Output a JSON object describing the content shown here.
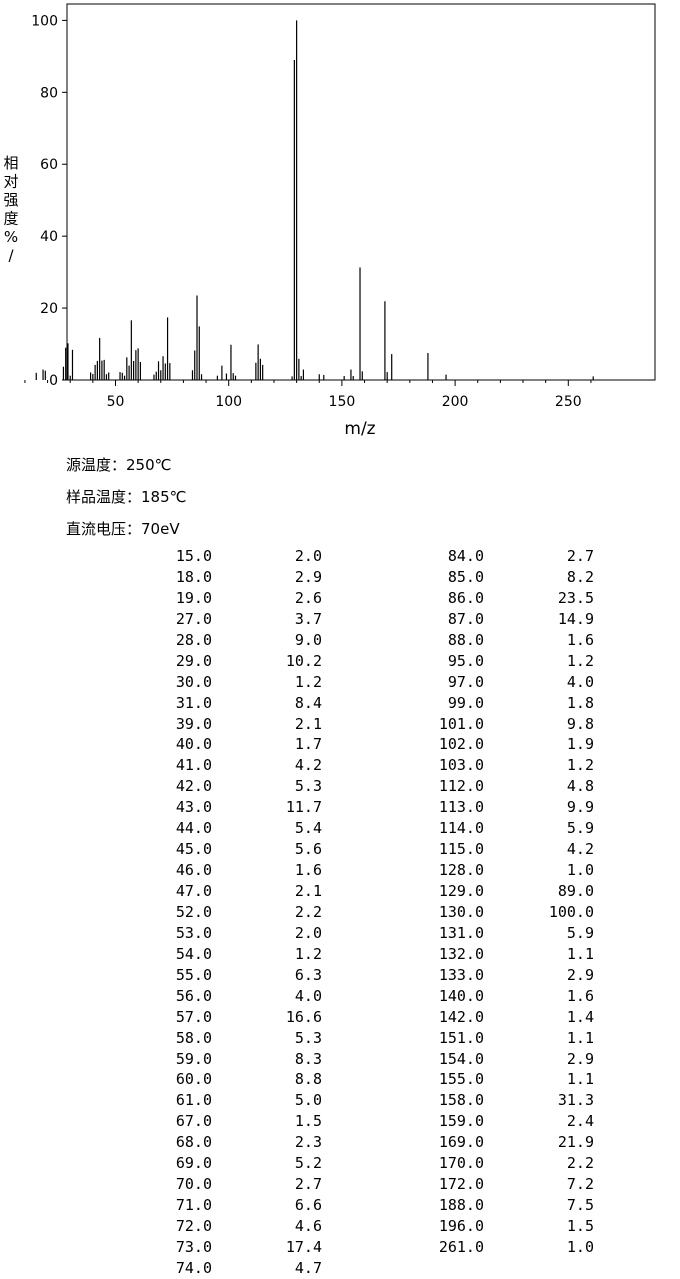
{
  "chart_data": {
    "type": "bar",
    "xlabel": "m/z",
    "ylabel": "相对强度 %/",
    "xlim": [
      9,
      265
    ],
    "ylim": [
      0,
      102
    ],
    "xticks": [
      50,
      100,
      150,
      200,
      250
    ],
    "yticks": [
      0,
      20,
      40,
      60,
      80,
      100
    ],
    "grid": false,
    "peaks": [
      [
        15.0,
        2.0
      ],
      [
        18.0,
        2.9
      ],
      [
        19.0,
        2.6
      ],
      [
        27.0,
        3.7
      ],
      [
        28.0,
        9.0
      ],
      [
        29.0,
        10.2
      ],
      [
        30.0,
        1.2
      ],
      [
        31.0,
        8.4
      ],
      [
        39.0,
        2.1
      ],
      [
        40.0,
        1.7
      ],
      [
        41.0,
        4.2
      ],
      [
        42.0,
        5.3
      ],
      [
        43.0,
        11.7
      ],
      [
        44.0,
        5.4
      ],
      [
        45.0,
        5.6
      ],
      [
        46.0,
        1.6
      ],
      [
        47.0,
        2.1
      ],
      [
        52.0,
        2.2
      ],
      [
        53.0,
        2.0
      ],
      [
        54.0,
        1.2
      ],
      [
        55.0,
        6.3
      ],
      [
        56.0,
        4.0
      ],
      [
        57.0,
        16.6
      ],
      [
        58.0,
        5.3
      ],
      [
        59.0,
        8.3
      ],
      [
        60.0,
        8.8
      ],
      [
        61.0,
        5.0
      ],
      [
        67.0,
        1.5
      ],
      [
        68.0,
        2.3
      ],
      [
        69.0,
        5.2
      ],
      [
        70.0,
        2.7
      ],
      [
        71.0,
        6.6
      ],
      [
        72.0,
        4.6
      ],
      [
        73.0,
        17.4
      ],
      [
        74.0,
        4.7
      ],
      [
        84.0,
        2.7
      ],
      [
        85.0,
        8.2
      ],
      [
        86.0,
        23.5
      ],
      [
        87.0,
        14.9
      ],
      [
        88.0,
        1.6
      ],
      [
        95.0,
        1.2
      ],
      [
        97.0,
        4.0
      ],
      [
        99.0,
        1.8
      ],
      [
        101.0,
        9.8
      ],
      [
        102.0,
        1.9
      ],
      [
        103.0,
        1.2
      ],
      [
        112.0,
        4.8
      ],
      [
        113.0,
        9.9
      ],
      [
        114.0,
        5.9
      ],
      [
        115.0,
        4.2
      ],
      [
        128.0,
        1.0
      ],
      [
        129.0,
        89.0
      ],
      [
        130.0,
        100.0
      ],
      [
        131.0,
        5.9
      ],
      [
        132.0,
        1.1
      ],
      [
        133.0,
        2.9
      ],
      [
        140.0,
        1.6
      ],
      [
        142.0,
        1.4
      ],
      [
        151.0,
        1.1
      ],
      [
        154.0,
        2.9
      ],
      [
        155.0,
        1.1
      ],
      [
        158.0,
        31.3
      ],
      [
        159.0,
        2.4
      ],
      [
        169.0,
        21.9
      ],
      [
        170.0,
        2.2
      ],
      [
        172.0,
        7.2
      ],
      [
        188.0,
        7.5
      ],
      [
        196.0,
        1.5
      ],
      [
        261.0,
        1.0
      ]
    ]
  },
  "conditions": {
    "source_temp": "源温度：250℃",
    "sample_temp": "样品温度：185℃",
    "voltage": "直流电压：70eV"
  },
  "table": {
    "left": [
      [
        "15.0",
        "2.0"
      ],
      [
        "18.0",
        "2.9"
      ],
      [
        "19.0",
        "2.6"
      ],
      [
        "27.0",
        "3.7"
      ],
      [
        "28.0",
        "9.0"
      ],
      [
        "29.0",
        "10.2"
      ],
      [
        "30.0",
        "1.2"
      ],
      [
        "31.0",
        "8.4"
      ],
      [
        "39.0",
        "2.1"
      ],
      [
        "40.0",
        "1.7"
      ],
      [
        "41.0",
        "4.2"
      ],
      [
        "42.0",
        "5.3"
      ],
      [
        "43.0",
        "11.7"
      ],
      [
        "44.0",
        "5.4"
      ],
      [
        "45.0",
        "5.6"
      ],
      [
        "46.0",
        "1.6"
      ],
      [
        "47.0",
        "2.1"
      ],
      [
        "52.0",
        "2.2"
      ],
      [
        "53.0",
        "2.0"
      ],
      [
        "54.0",
        "1.2"
      ],
      [
        "55.0",
        "6.3"
      ],
      [
        "56.0",
        "4.0"
      ],
      [
        "57.0",
        "16.6"
      ],
      [
        "58.0",
        "5.3"
      ],
      [
        "59.0",
        "8.3"
      ],
      [
        "60.0",
        "8.8"
      ],
      [
        "61.0",
        "5.0"
      ],
      [
        "67.0",
        "1.5"
      ],
      [
        "68.0",
        "2.3"
      ],
      [
        "69.0",
        "5.2"
      ],
      [
        "70.0",
        "2.7"
      ],
      [
        "71.0",
        "6.6"
      ],
      [
        "72.0",
        "4.6"
      ],
      [
        "73.0",
        "17.4"
      ],
      [
        "74.0",
        "4.7"
      ]
    ],
    "right": [
      [
        "84.0",
        "2.7"
      ],
      [
        "85.0",
        "8.2"
      ],
      [
        "86.0",
        "23.5"
      ],
      [
        "87.0",
        "14.9"
      ],
      [
        "88.0",
        "1.6"
      ],
      [
        "95.0",
        "1.2"
      ],
      [
        "97.0",
        "4.0"
      ],
      [
        "99.0",
        "1.8"
      ],
      [
        "101.0",
        "9.8"
      ],
      [
        "102.0",
        "1.9"
      ],
      [
        "103.0",
        "1.2"
      ],
      [
        "112.0",
        "4.8"
      ],
      [
        "113.0",
        "9.9"
      ],
      [
        "114.0",
        "5.9"
      ],
      [
        "115.0",
        "4.2"
      ],
      [
        "128.0",
        "1.0"
      ],
      [
        "129.0",
        "89.0"
      ],
      [
        "130.0",
        "100.0"
      ],
      [
        "131.0",
        "5.9"
      ],
      [
        "132.0",
        "1.1"
      ],
      [
        "133.0",
        "2.9"
      ],
      [
        "140.0",
        "1.6"
      ],
      [
        "142.0",
        "1.4"
      ],
      [
        "151.0",
        "1.1"
      ],
      [
        "154.0",
        "2.9"
      ],
      [
        "155.0",
        "1.1"
      ],
      [
        "158.0",
        "31.3"
      ],
      [
        "159.0",
        "2.4"
      ],
      [
        "169.0",
        "21.9"
      ],
      [
        "170.0",
        "2.2"
      ],
      [
        "172.0",
        "7.2"
      ],
      [
        "188.0",
        "7.5"
      ],
      [
        "196.0",
        "1.5"
      ],
      [
        "261.0",
        "1.0"
      ]
    ]
  }
}
